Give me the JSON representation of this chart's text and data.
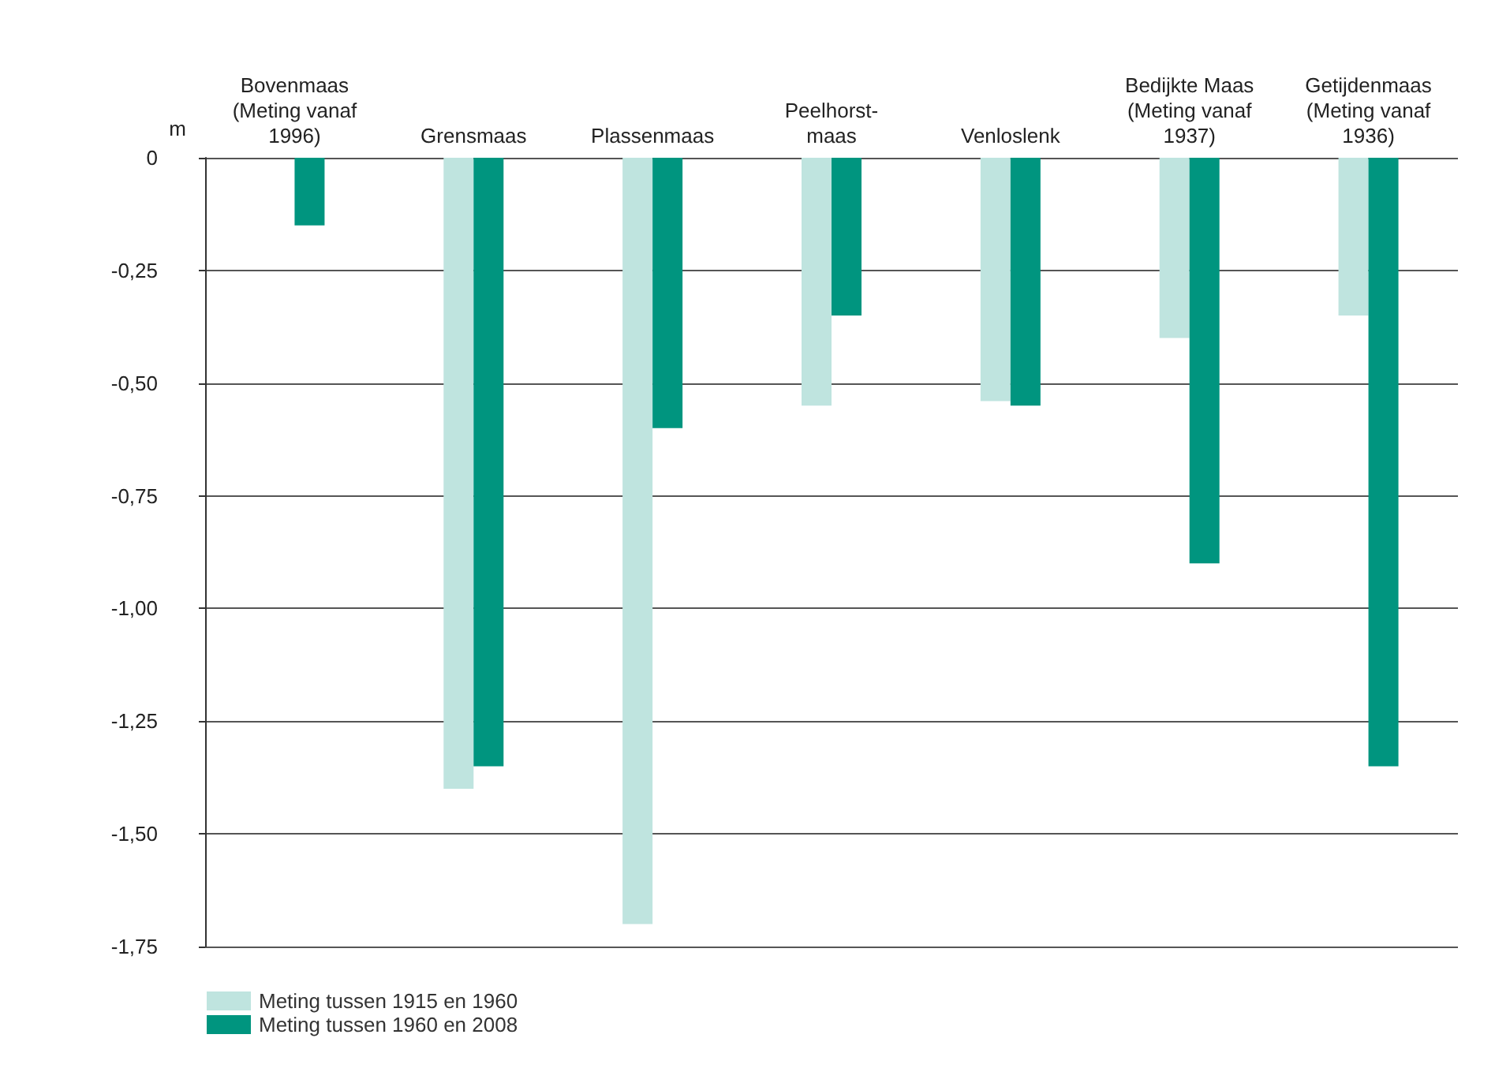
{
  "chart_data": {
    "type": "bar",
    "ylabel": "m",
    "categories": [
      "Bovenmaas\n(Meting vanaf\n1996)",
      "Grensmaas",
      "Plassenmaas",
      "Peelhorst-\nmaas",
      "Venloslenk",
      "Bedijkte Maas\n(Meting vanaf\n1937)",
      "Getijdenmaas\n(Meting vanaf\n1936)"
    ],
    "series": [
      {
        "name": "Meting tussen 1915 en 1960",
        "color": "#bfe4df",
        "values": [
          null,
          -1.4,
          -1.7,
          -0.55,
          -0.54,
          -0.4,
          -0.35
        ]
      },
      {
        "name": "Meting tussen 1960 en 2008",
        "color": "#00957f",
        "values": [
          -0.15,
          -1.35,
          -0.6,
          -0.35,
          -0.55,
          -0.9,
          -1.35
        ]
      }
    ],
    "ylim": [
      -1.75,
      0
    ],
    "yticks": [
      {
        "value": -1.75,
        "label": "-1,75"
      },
      {
        "value": -1.5,
        "label": "-1,50"
      },
      {
        "value": -1.25,
        "label": "-1,25"
      },
      {
        "value": -1,
        "label": "-1,00"
      },
      {
        "value": -0.75,
        "label": "-0,75"
      },
      {
        "value": -0.5,
        "label": "-0,50"
      },
      {
        "value": -0.25,
        "label": "-0,25"
      },
      0
    ],
    "grid": "y",
    "legend": "bottom left"
  }
}
